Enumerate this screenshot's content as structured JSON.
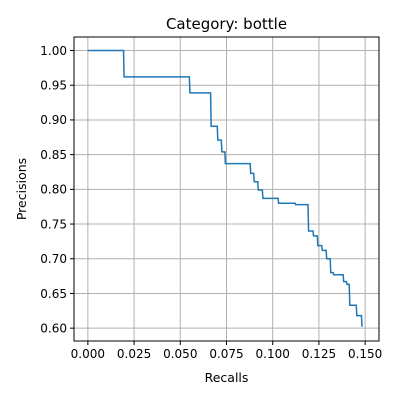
{
  "chart_data": {
    "type": "line",
    "title": "Category: bottle",
    "xlabel": "Recalls",
    "ylabel": "Precisions",
    "xlim": [
      -0.0075,
      0.1575
    ],
    "ylim": [
      0.5815,
      1.0195
    ],
    "xticks": [
      0.0,
      0.025,
      0.05,
      0.075,
      0.1,
      0.125,
      0.15
    ],
    "xtick_labels": [
      "0.000",
      "0.025",
      "0.050",
      "0.075",
      "0.100",
      "0.125",
      "0.150"
    ],
    "yticks": [
      0.6,
      0.65,
      0.7,
      0.75,
      0.8,
      0.85,
      0.9,
      0.95,
      1.0
    ],
    "ytick_labels": [
      "0.60",
      "0.65",
      "0.70",
      "0.75",
      "0.80",
      "0.85",
      "0.90",
      "0.95",
      "1.00"
    ],
    "grid": true,
    "line_color": "#1f77b4",
    "grid_color": "#b0b0b0",
    "series": [
      {
        "step": "post",
        "x": [
          0.0,
          0.0193,
          0.0196,
          0.0549,
          0.0552,
          0.0664,
          0.0667,
          0.07,
          0.0703,
          0.0722,
          0.0725,
          0.0741,
          0.0744,
          0.0878,
          0.0881,
          0.0897,
          0.09,
          0.0919,
          0.0922,
          0.0944,
          0.0947,
          0.1029,
          0.1032,
          0.1121,
          0.1124,
          0.1191,
          0.1194,
          0.1218,
          0.1221,
          0.1241,
          0.1244,
          0.1265,
          0.1268,
          0.1289,
          0.1292,
          0.1311,
          0.1314,
          0.1327,
          0.133,
          0.1381,
          0.1384,
          0.1399,
          0.1402,
          0.1414,
          0.1417,
          0.1452,
          0.1455,
          0.148,
          0.1483
        ],
        "y": [
          1.0,
          1.0,
          0.962,
          0.962,
          0.939,
          0.939,
          0.891,
          0.891,
          0.871,
          0.871,
          0.854,
          0.854,
          0.837,
          0.837,
          0.823,
          0.823,
          0.811,
          0.811,
          0.799,
          0.799,
          0.787,
          0.787,
          0.78,
          0.78,
          0.778,
          0.778,
          0.74,
          0.74,
          0.733,
          0.733,
          0.719,
          0.719,
          0.712,
          0.712,
          0.7,
          0.7,
          0.68,
          0.68,
          0.677,
          0.677,
          0.667,
          0.667,
          0.663,
          0.663,
          0.633,
          0.633,
          0.618,
          0.618,
          0.602
        ]
      }
    ]
  }
}
